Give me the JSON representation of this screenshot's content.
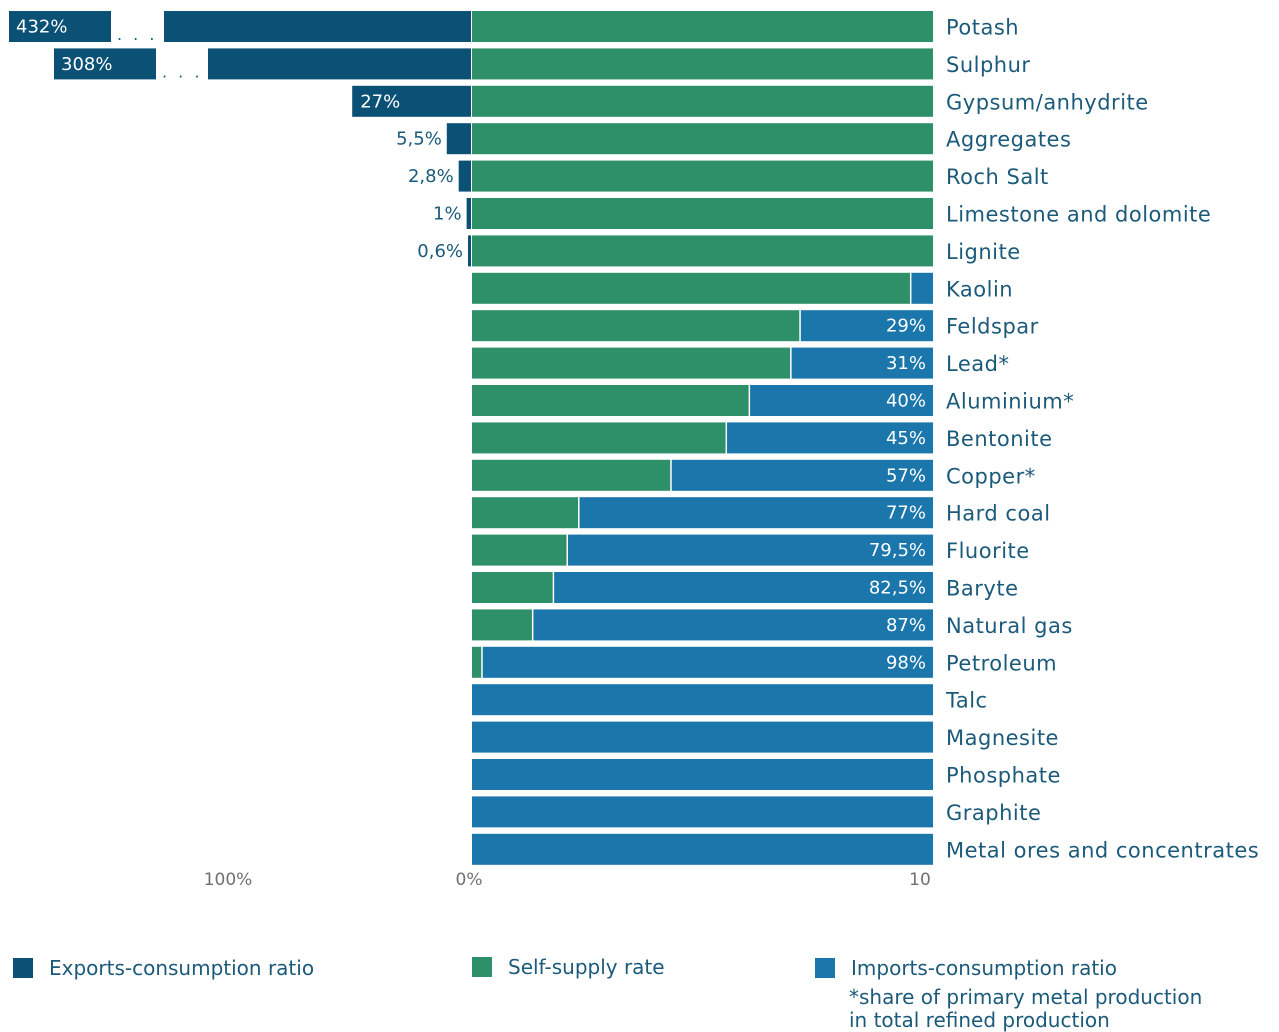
{
  "chart_data": {
    "type": "bar",
    "orientation": "horizontal-diverging",
    "colors": {
      "exports": "#0b5176",
      "self_supply": "#2e9068",
      "imports": "#1a76ab"
    },
    "axis_ticks": [
      "100%",
      "0%",
      "10"
    ],
    "rows": [
      {
        "category": "Potash",
        "export_pct": 432,
        "export_label": "432%",
        "broken": true,
        "import_pct": 0,
        "import_label": ""
      },
      {
        "category": "Sulphur",
        "export_pct": 308,
        "export_label": "308%",
        "broken": true,
        "import_pct": 0,
        "import_label": ""
      },
      {
        "category": "Gypsum/anhydrite",
        "export_pct": 27,
        "export_label": "27%",
        "broken": false,
        "import_pct": 0,
        "import_label": ""
      },
      {
        "category": "Aggregates",
        "export_pct": 5.5,
        "export_label": "5,5%",
        "broken": false,
        "import_pct": 0,
        "import_label": ""
      },
      {
        "category": "Roch Salt",
        "export_pct": 2.8,
        "export_label": "2,8%",
        "broken": false,
        "import_pct": 0,
        "import_label": ""
      },
      {
        "category": "Limestone and dolomite",
        "export_pct": 1,
        "export_label": "1%",
        "broken": false,
        "import_pct": 0,
        "import_label": ""
      },
      {
        "category": "Lignite",
        "export_pct": 0.6,
        "export_label": "0,6%",
        "broken": false,
        "import_pct": 0,
        "import_label": ""
      },
      {
        "category": "Kaolin",
        "export_pct": 0,
        "export_label": "",
        "broken": false,
        "import_pct": 5,
        "import_label": ""
      },
      {
        "category": "Feldspar",
        "export_pct": 0,
        "export_label": "",
        "broken": false,
        "import_pct": 29,
        "import_label": "29%"
      },
      {
        "category": "Lead*",
        "export_pct": 0,
        "export_label": "",
        "broken": false,
        "import_pct": 31,
        "import_label": "31%"
      },
      {
        "category": "Aluminium*",
        "export_pct": 0,
        "export_label": "",
        "broken": false,
        "import_pct": 40,
        "import_label": "40%"
      },
      {
        "category": "Bentonite",
        "export_pct": 0,
        "export_label": "",
        "broken": false,
        "import_pct": 45,
        "import_label": "45%"
      },
      {
        "category": "Copper*",
        "export_pct": 0,
        "export_label": "",
        "broken": false,
        "import_pct": 57,
        "import_label": "57%"
      },
      {
        "category": "Hard coal",
        "export_pct": 0,
        "export_label": "",
        "broken": false,
        "import_pct": 77,
        "import_label": "77%"
      },
      {
        "category": "Fluorite",
        "export_pct": 0,
        "export_label": "",
        "broken": false,
        "import_pct": 79.5,
        "import_label": "79,5%"
      },
      {
        "category": "Baryte",
        "export_pct": 0,
        "export_label": "",
        "broken": false,
        "import_pct": 82.5,
        "import_label": "82,5%"
      },
      {
        "category": "Natural gas",
        "export_pct": 0,
        "export_label": "",
        "broken": false,
        "import_pct": 87,
        "import_label": "87%"
      },
      {
        "category": "Petroleum",
        "export_pct": 0,
        "export_label": "",
        "broken": false,
        "import_pct": 98,
        "import_label": "98%"
      },
      {
        "category": "Talc",
        "export_pct": 0,
        "export_label": "",
        "broken": false,
        "import_pct": 100,
        "import_label": ""
      },
      {
        "category": "Magnesite",
        "export_pct": 0,
        "export_label": "",
        "broken": false,
        "import_pct": 100,
        "import_label": ""
      },
      {
        "category": "Phosphate",
        "export_pct": 0,
        "export_label": "",
        "broken": false,
        "import_pct": 100,
        "import_label": ""
      },
      {
        "category": "Graphite",
        "export_pct": 0,
        "export_label": "",
        "broken": false,
        "import_pct": 100,
        "import_label": ""
      },
      {
        "category": "Metal ores and concentrates",
        "export_pct": 0,
        "export_label": "",
        "broken": false,
        "import_pct": 100,
        "import_label": ""
      }
    ],
    "legend": {
      "exports": "Exports-consumption ratio",
      "self_supply": "Self-supply rate",
      "imports": "Imports-consumption ratio"
    },
    "footnote": "*share of primary metal production\n in total refined production"
  }
}
